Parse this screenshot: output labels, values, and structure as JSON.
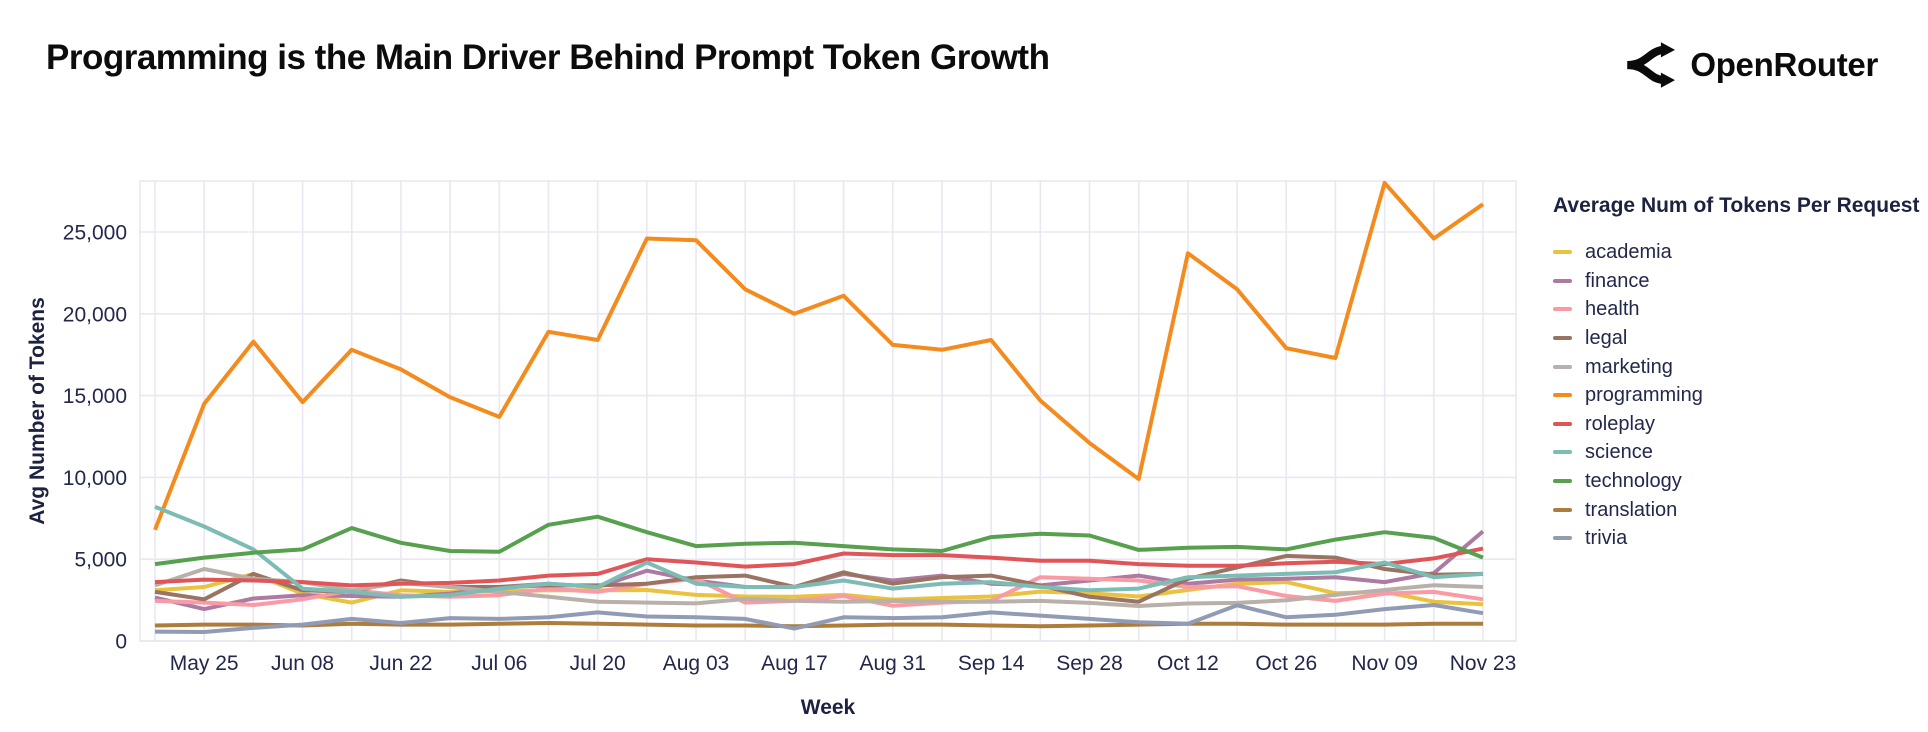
{
  "header": {
    "title": "Programming is the Main Driver Behind Prompt Token Growth",
    "brand": "OpenRouter"
  },
  "chart_data": {
    "type": "line",
    "xlabel": "Week",
    "ylabel": "Avg Number of Tokens",
    "legend_title": "Average Num of Tokens Per Request",
    "legend_position": "right",
    "grid": true,
    "n_points": 28,
    "ylim": [
      0,
      28100
    ],
    "yticks": [
      0,
      5000,
      10000,
      15000,
      20000,
      25000
    ],
    "ytick_labels": [
      "0",
      "5,000",
      "10,000",
      "15,000",
      "20,000",
      "25,000"
    ],
    "x_tick_indices": [
      1,
      3,
      5,
      7,
      9,
      11,
      13,
      15,
      17,
      19,
      21,
      23,
      25,
      27
    ],
    "x_tick_labels": [
      "May 25",
      "Jun 08",
      "Jun 22",
      "Jul 06",
      "Jul 20",
      "Aug 03",
      "Aug 17",
      "Aug 31",
      "Sep 14",
      "Sep 28",
      "Oct 12",
      "Oct 26",
      "Nov 09",
      "Nov 23"
    ],
    "series": [
      {
        "name": "academia",
        "color": "#e9c23f",
        "values": [
          3100,
          3300,
          4100,
          2900,
          2350,
          3100,
          3000,
          3050,
          3100,
          3100,
          3120,
          2820,
          2720,
          2700,
          2820,
          2530,
          2630,
          2720,
          3020,
          2920,
          2720,
          3120,
          3510,
          3600,
          2920,
          3000,
          2400,
          2250
        ]
      },
      {
        "name": "finance",
        "color": "#ad7aa1",
        "values": [
          2650,
          1950,
          2600,
          2800,
          2750,
          2700,
          2900,
          3300,
          3500,
          3300,
          4300,
          3700,
          3300,
          3300,
          4100,
          3700,
          4000,
          3500,
          3400,
          3700,
          4000,
          3500,
          3750,
          3800,
          3900,
          3600,
          4150,
          6700
        ]
      },
      {
        "name": "health",
        "color": "#f99aa5",
        "values": [
          2450,
          2350,
          2200,
          2550,
          3100,
          2800,
          2700,
          2800,
          3200,
          3000,
          3500,
          3800,
          2350,
          2450,
          2750,
          2150,
          2350,
          2450,
          3900,
          3800,
          3700,
          3300,
          3350,
          2750,
          2450,
          2900,
          3000,
          2550
        ]
      },
      {
        "name": "legal",
        "color": "#9a7462",
        "values": [
          3000,
          2550,
          4100,
          3100,
          3000,
          3700,
          3300,
          3300,
          3400,
          3400,
          3500,
          3900,
          4000,
          3300,
          4200,
          3500,
          3900,
          4000,
          3400,
          2700,
          2400,
          3800,
          4500,
          5200,
          5100,
          4400,
          4050,
          4100
        ]
      },
      {
        "name": "marketing",
        "color": "#b9b1a9",
        "values": [
          3400,
          4400,
          3800,
          3600,
          3100,
          3550,
          3300,
          3000,
          2700,
          2400,
          2350,
          2300,
          2570,
          2450,
          2400,
          2450,
          2400,
          2400,
          2450,
          2330,
          2140,
          2290,
          2330,
          2490,
          2820,
          3120,
          3410,
          3300
        ]
      },
      {
        "name": "programming",
        "color": "#f38b1f",
        "values": [
          6800,
          14500,
          18300,
          14600,
          17800,
          16600,
          14900,
          13700,
          18900,
          18400,
          24600,
          24500,
          21500,
          20000,
          21100,
          18100,
          17800,
          18400,
          14700,
          12100,
          9900,
          23700,
          21500,
          17900,
          17300,
          28000,
          24600,
          26700
        ]
      },
      {
        "name": "roleplay",
        "color": "#e05658",
        "values": [
          3600,
          3750,
          3700,
          3600,
          3400,
          3500,
          3550,
          3700,
          4000,
          4100,
          5000,
          4800,
          4550,
          4700,
          5350,
          5250,
          5250,
          5100,
          4900,
          4900,
          4700,
          4600,
          4600,
          4750,
          4850,
          4700,
          5050,
          5650
        ]
      },
      {
        "name": "science",
        "color": "#7cbcb5",
        "values": [
          8200,
          7000,
          5600,
          3200,
          3000,
          2700,
          2800,
          3200,
          3500,
          3300,
          4800,
          3500,
          3300,
          3300,
          3700,
          3200,
          3500,
          3600,
          3300,
          3100,
          3200,
          3900,
          4000,
          4100,
          4200,
          4800,
          3900,
          4100
        ]
      },
      {
        "name": "technology",
        "color": "#57a04e",
        "values": [
          4700,
          5100,
          5400,
          5600,
          6900,
          6000,
          5500,
          5450,
          7100,
          7600,
          6650,
          5800,
          5950,
          6000,
          5800,
          5600,
          5500,
          6350,
          6550,
          6450,
          5570,
          5700,
          5750,
          5600,
          6200,
          6650,
          6300,
          5100
        ]
      },
      {
        "name": "translation",
        "color": "#ae7d3e",
        "values": [
          950,
          1000,
          1000,
          950,
          1050,
          1000,
          1000,
          1050,
          1100,
          1050,
          1000,
          950,
          950,
          900,
          950,
          1000,
          1000,
          950,
          900,
          950,
          1000,
          1050,
          1050,
          1000,
          1000,
          1000,
          1050,
          1060
        ]
      },
      {
        "name": "trivia",
        "color": "#929bb4",
        "values": [
          575,
          550,
          800,
          1000,
          1350,
          1100,
          1400,
          1350,
          1450,
          1750,
          1500,
          1450,
          1350,
          760,
          1450,
          1400,
          1450,
          1750,
          1550,
          1350,
          1150,
          1050,
          2180,
          1450,
          1600,
          1950,
          2200,
          1700
        ]
      }
    ]
  }
}
